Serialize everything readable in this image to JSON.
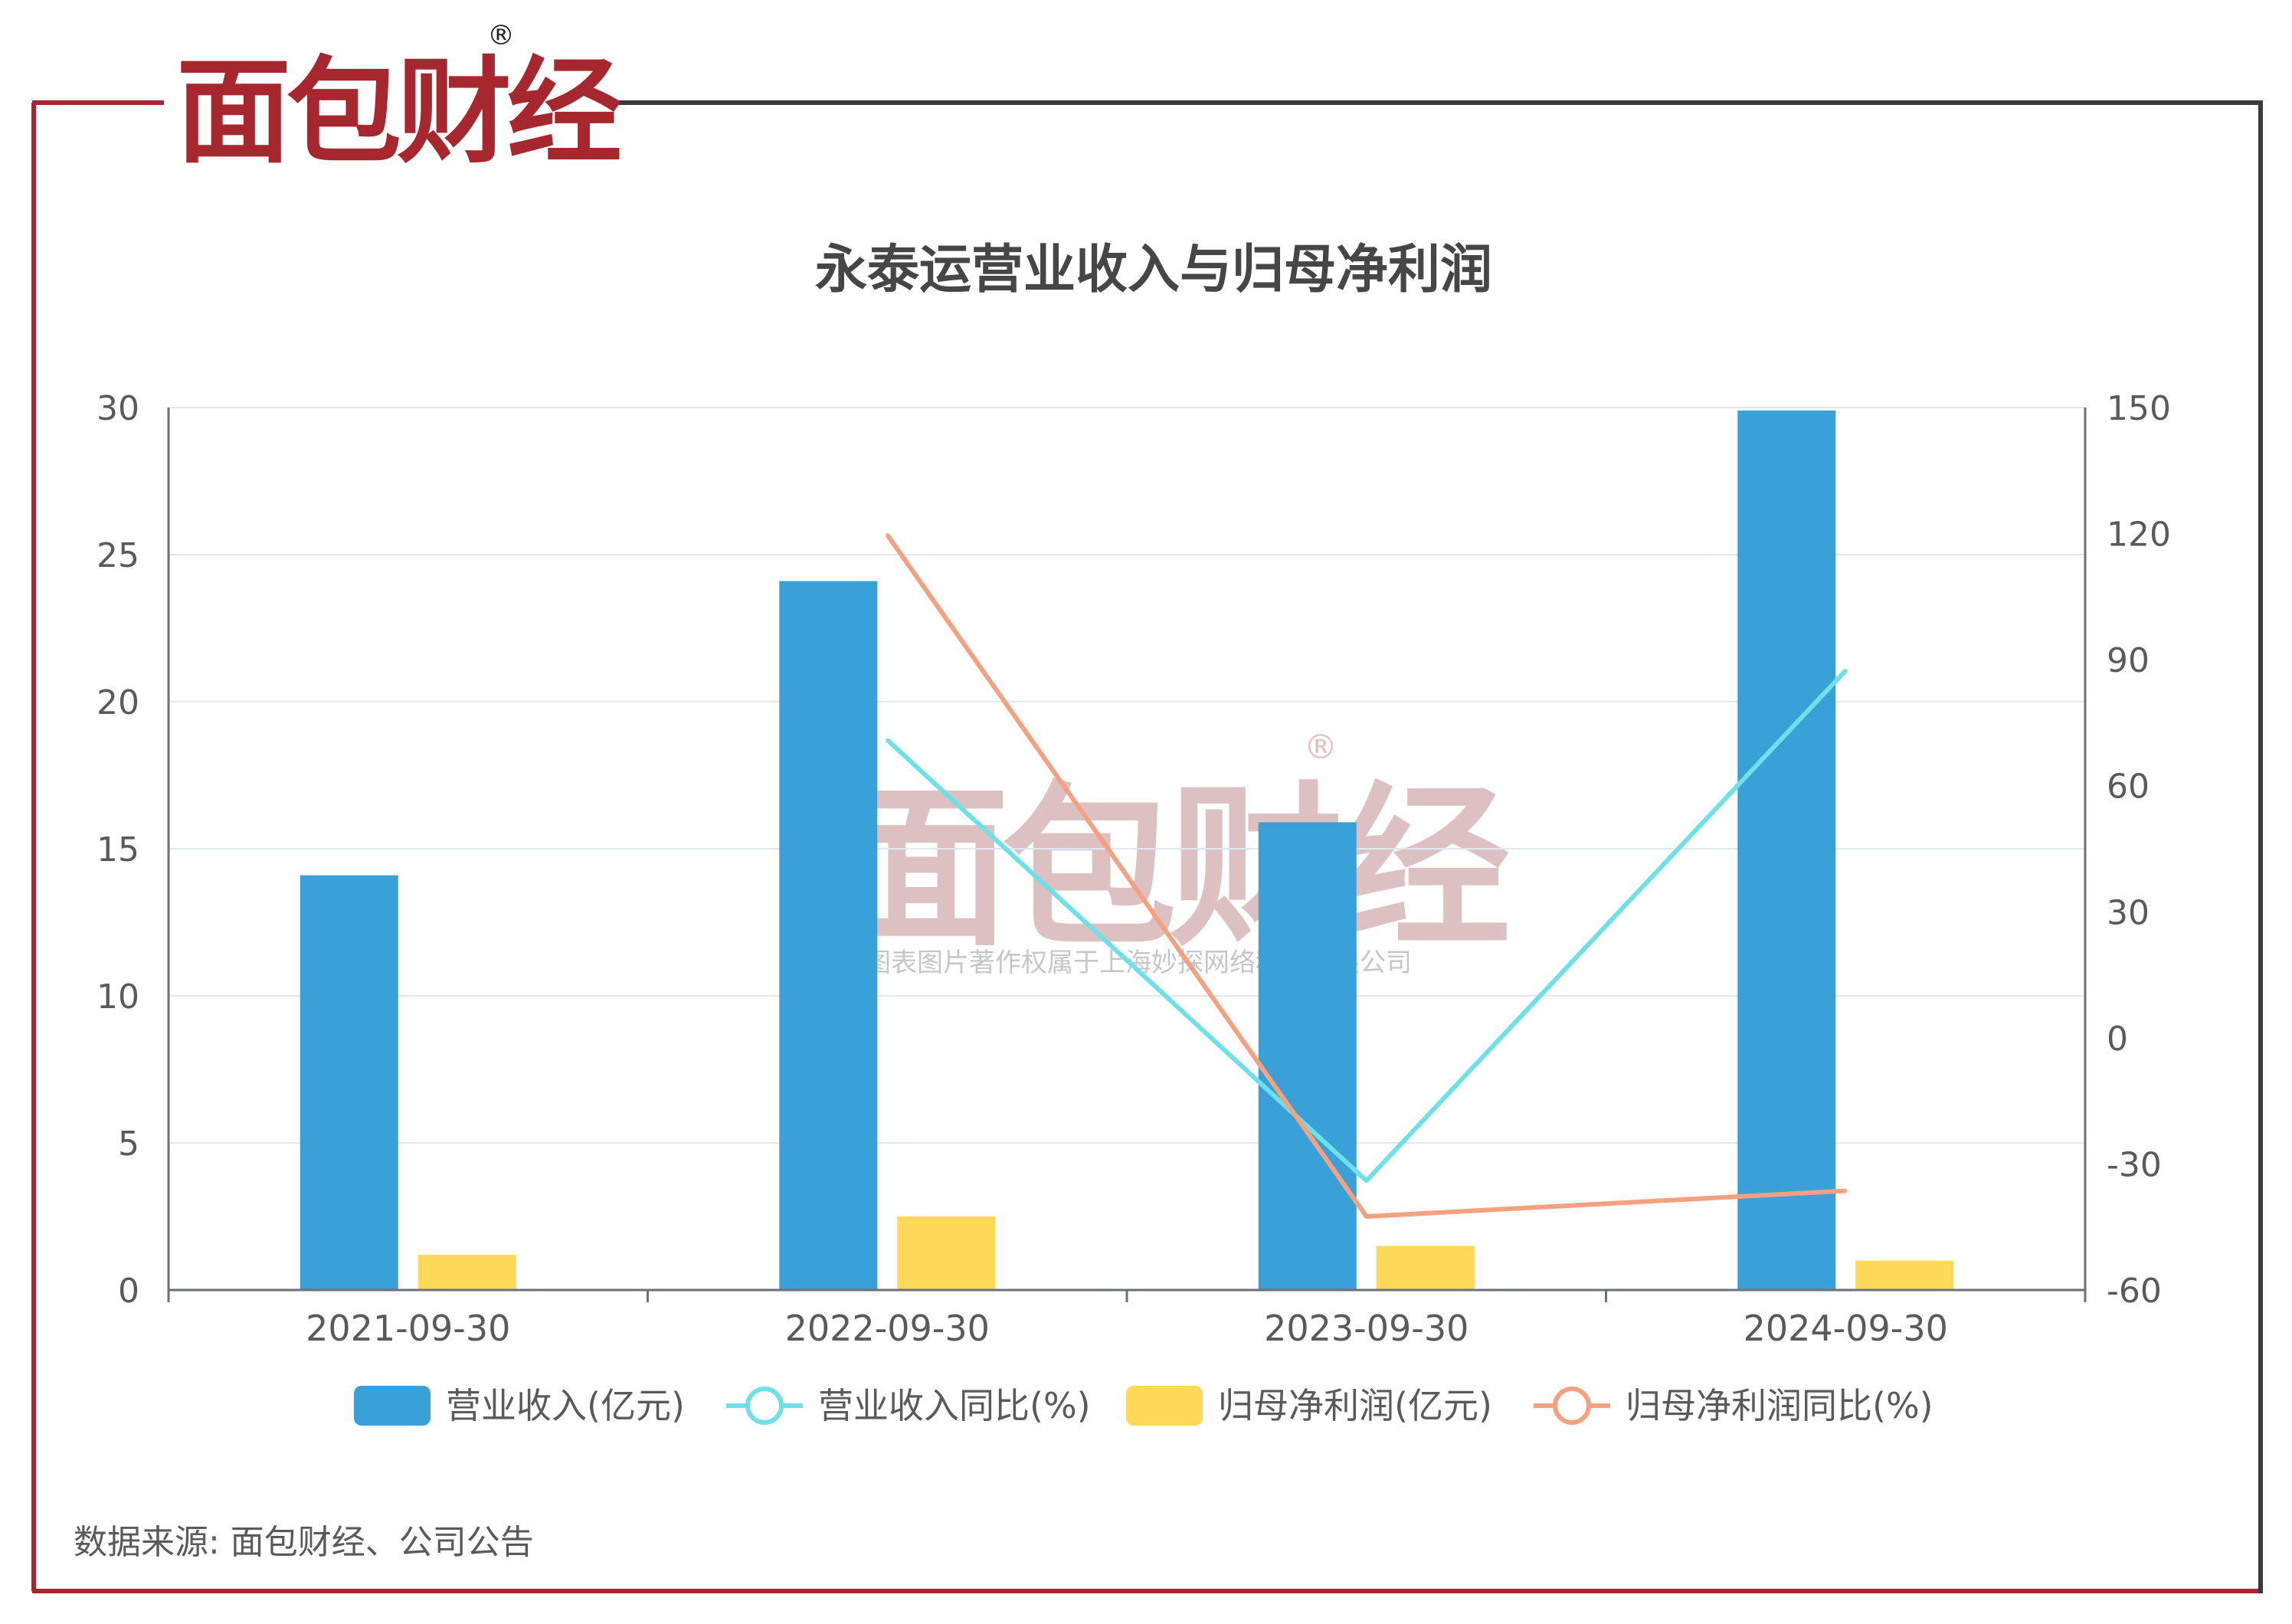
{
  "brand": {
    "logo_text": "面包财经",
    "registered_mark": "®",
    "color_red": "#a6282e",
    "color_dark": "#1f1f1f"
  },
  "watermark": {
    "logo_text": "面包财经",
    "registered_mark": "®",
    "copyright": "本图表图片著作权属于上海妙探网络科技有限公司"
  },
  "footer": {
    "source": "数据来源: 面包财经、公司公告"
  },
  "colors": {
    "frame_red": "#a6282e",
    "frame_dark": "#3a3a3a",
    "revenue_bar": "#3aa0d8",
    "revenue_yoy_line": "#6ee0e8",
    "profit_bar": "#ffd957",
    "profit_yoy_line": "#f5a07f",
    "axis": "#6e7079",
    "grid": "#e0e6f1",
    "text": "#5a5a5a",
    "title": "#464646"
  },
  "chart_data": {
    "type": "bar",
    "title": "永泰运营业收入与归母净利润",
    "categories": [
      "2021-09-30",
      "2022-09-30",
      "2023-09-30",
      "2024-09-30"
    ],
    "y_left": {
      "min": 0,
      "max": 30,
      "ticks": [
        "0",
        "5",
        "10",
        "15",
        "20",
        "25",
        "30"
      ]
    },
    "y_right": {
      "min": -60,
      "max": 150,
      "ticks": [
        "-60",
        "-30",
        "0",
        "30",
        "60",
        "90",
        "120",
        "150"
      ]
    },
    "grid": true,
    "legend_position": "bottom-center",
    "series": [
      {
        "name": "营业收入(亿元)",
        "kind": "bar",
        "axis": "left",
        "color": "#3aa0d8",
        "values": [
          14.1,
          24.1,
          15.9,
          29.9
        ]
      },
      {
        "name": "营业收入同比(%)",
        "kind": "line",
        "axis": "right",
        "color": "#6ee0e8",
        "values": [
          null,
          70.9,
          -34.0,
          87.4
        ]
      },
      {
        "name": "归母净利润(亿元)",
        "kind": "bar",
        "axis": "left",
        "color": "#ffd957",
        "values": [
          1.2,
          2.5,
          1.5,
          1.0
        ]
      },
      {
        "name": "归母净利润同比(%)",
        "kind": "line",
        "axis": "right",
        "color": "#f5a07f",
        "values": [
          null,
          119.7,
          -42.5,
          -36.4
        ]
      }
    ]
  }
}
